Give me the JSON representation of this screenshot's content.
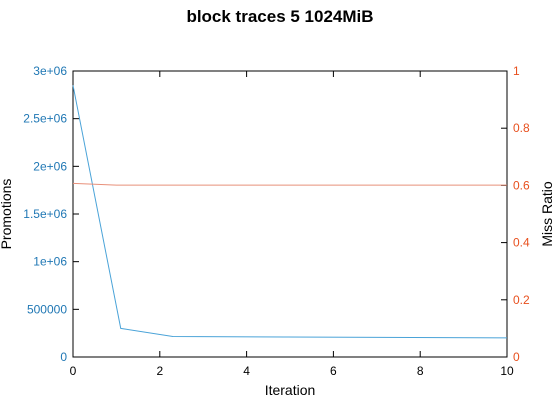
{
  "chart_data": {
    "type": "line",
    "title": "block traces 5 1024MiB",
    "xlabel": "Iteration",
    "ylabel_left": "Promotions",
    "ylabel_right": "Miss Ratio",
    "xlim": [
      0,
      10
    ],
    "ylim_left": [
      0,
      3000000
    ],
    "ylim_right": [
      0,
      1
    ],
    "x_ticks": [
      "0",
      "2",
      "4",
      "6",
      "8",
      "10"
    ],
    "y_left_ticks": [
      "0",
      "500000",
      "1e+06",
      "1.5e+06",
      "2e+06",
      "2.5e+06",
      "3e+06"
    ],
    "y_right_ticks": [
      "0",
      "0.2",
      "0.4",
      "0.6",
      "0.8",
      "1"
    ],
    "grid": false,
    "series": [
      {
        "axis": "left",
        "color": "#4aa3d8",
        "x": [
          0,
          1.1,
          2.3,
          10
        ],
        "y": [
          2850000,
          300000,
          215000,
          200000
        ]
      },
      {
        "axis": "right",
        "color": "#e8907a",
        "x": [
          0,
          1,
          10
        ],
        "y": [
          0.607,
          0.601,
          0.601
        ]
      }
    ]
  }
}
